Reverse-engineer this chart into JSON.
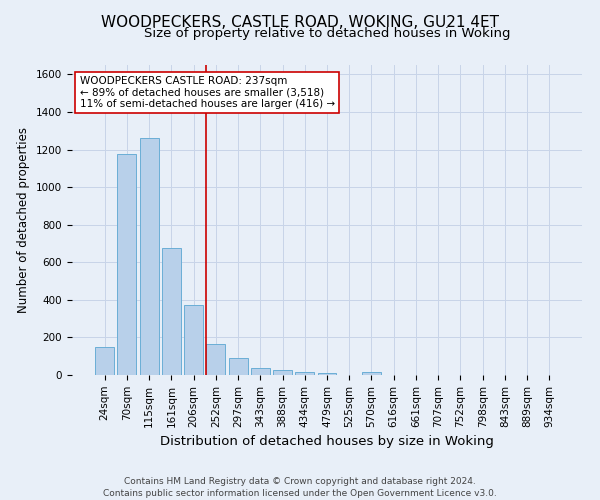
{
  "title": "WOODPECKERS, CASTLE ROAD, WOKING, GU21 4ET",
  "subtitle": "Size of property relative to detached houses in Woking",
  "xlabel": "Distribution of detached houses by size in Woking",
  "ylabel": "Number of detached properties",
  "footer_line1": "Contains HM Land Registry data © Crown copyright and database right 2024.",
  "footer_line2": "Contains public sector information licensed under the Open Government Licence v3.0.",
  "bar_labels": [
    "24sqm",
    "70sqm",
    "115sqm",
    "161sqm",
    "206sqm",
    "252sqm",
    "297sqm",
    "343sqm",
    "388sqm",
    "434sqm",
    "479sqm",
    "525sqm",
    "570sqm",
    "616sqm",
    "661sqm",
    "707sqm",
    "752sqm",
    "798sqm",
    "843sqm",
    "889sqm",
    "934sqm"
  ],
  "bar_values": [
    150,
    1175,
    1260,
    675,
    375,
    165,
    90,
    38,
    28,
    18,
    12,
    0,
    15,
    0,
    0,
    0,
    0,
    0,
    0,
    0,
    0
  ],
  "bar_color": "#b8d0ea",
  "bar_edge_color": "#6aaed6",
  "background_color": "#e8eff8",
  "grid_color": "#c8d4e8",
  "vline_color": "#cc0000",
  "annotation_text": "WOODPECKERS CASTLE ROAD: 237sqm\n← 89% of detached houses are smaller (3,518)\n11% of semi-detached houses are larger (416) →",
  "annotation_box_color": "white",
  "annotation_box_edge_color": "#cc0000",
  "ylim": [
    0,
    1650
  ],
  "yticks": [
    0,
    200,
    400,
    600,
    800,
    1000,
    1200,
    1400,
    1600
  ],
  "title_fontsize": 11,
  "subtitle_fontsize": 9.5,
  "xlabel_fontsize": 9.5,
  "ylabel_fontsize": 8.5,
  "tick_fontsize": 7.5,
  "annotation_fontsize": 7.5,
  "footer_fontsize": 6.5,
  "vline_pos": 4.575
}
